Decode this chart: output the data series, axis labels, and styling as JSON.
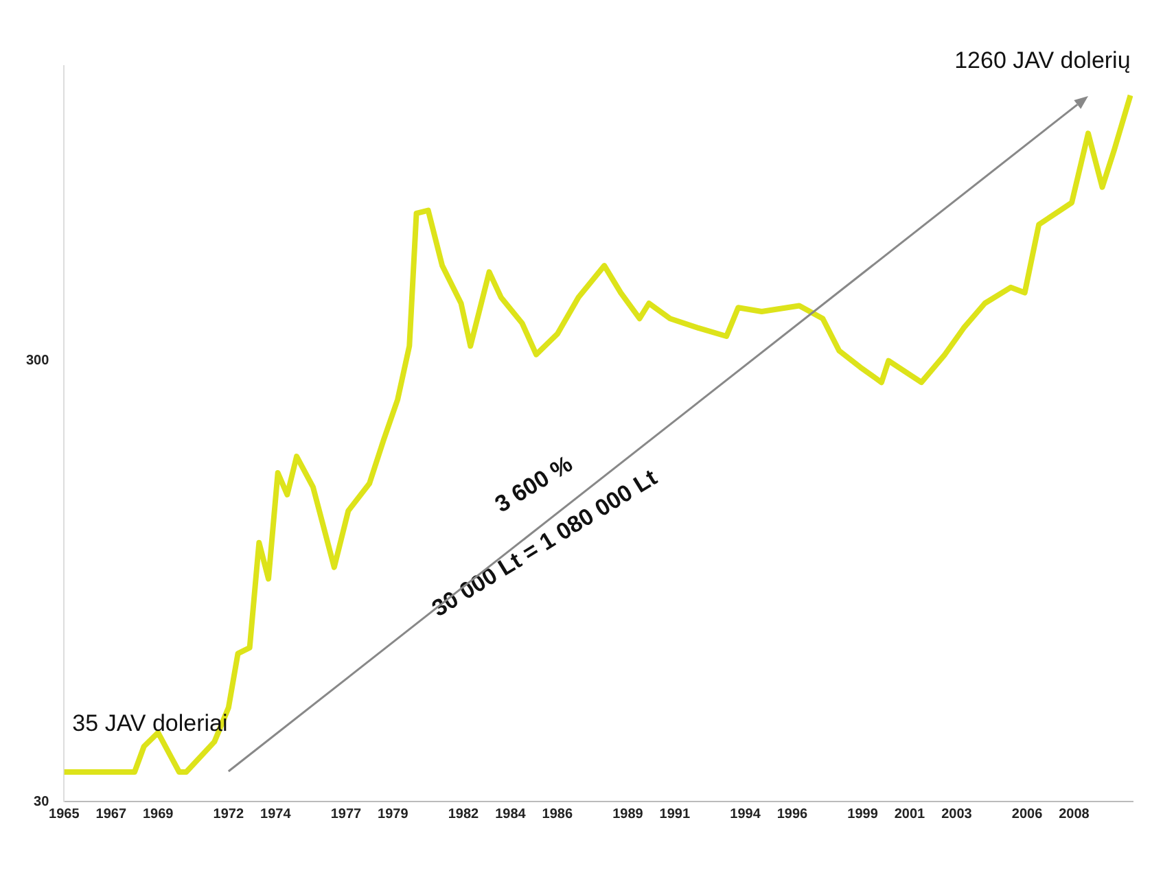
{
  "chart_data": {
    "type": "line",
    "log": "y",
    "grid": false,
    "legend": false,
    "marker": "none",
    "line_style": "solid",
    "x": [
      1965,
      1968.0,
      1968.4,
      1969.0,
      1969.9,
      1970.2,
      1971.4,
      1972.0,
      1972.4,
      1972.9,
      1973.3,
      1973.7,
      1974.1,
      1974.5,
      1974.9,
      1975.6,
      1976.5,
      1977.1,
      1978.0,
      1978.6,
      1979.2,
      1979.7,
      1980.0,
      1980.5,
      1981.1,
      1981.9,
      1982.3,
      1983.1,
      1983.6,
      1984.5,
      1985.1,
      1986.0,
      1986.9,
      1988.0,
      1988.7,
      1989.5,
      1989.9,
      1990.8,
      1992.0,
      1993.2,
      1993.7,
      1994.7,
      1996.3,
      1997.3,
      1998.0,
      1998.9,
      1999.8,
      2000.1,
      2001.5,
      2002.5,
      2003.3,
      2004.2,
      2005.3,
      2005.9,
      2006.5,
      2007.9,
      2008.6,
      2009.2,
      2009.7,
      2010.4
    ],
    "series": [
      {
        "color": "#dde31a",
        "values": [
          35,
          35,
          40,
          43,
          35,
          35,
          41,
          49,
          65,
          67,
          116,
          96,
          167,
          149,
          182,
          155,
          102,
          137,
          158,
          198,
          245,
          324,
          648,
          658,
          493,
          405,
          324,
          477,
          418,
          365,
          310,
          345,
          418,
          493,
          428,
          374,
          405,
          374,
          356,
          341,
          396,
          388,
          400,
          374,
          316,
          290,
          268,
          300,
          268,
          310,
          356,
          405,
          440,
          428,
          611,
          685,
          984,
          743,
          899,
          1200
        ]
      }
    ],
    "xlim": [
      1965,
      2010.5
    ],
    "xticks": [
      1965,
      1967,
      1969,
      1972,
      1974,
      1977,
      1979,
      1982,
      1984,
      1986,
      1989,
      1991,
      1994,
      1996,
      1999,
      2001,
      2003,
      2006,
      2008
    ],
    "ylim": [
      30,
      1400
    ],
    "yticks": [
      30,
      300
    ],
    "annotations": [
      {
        "text": "35 JAV doleriai",
        "x": 1965,
        "y": 35
      },
      {
        "text": "1260 JAV dolerių",
        "x": 2010.4,
        "y": 1200
      },
      "3 600 %",
      "30 000 Lt = 1 080 000 Lt"
    ]
  }
}
